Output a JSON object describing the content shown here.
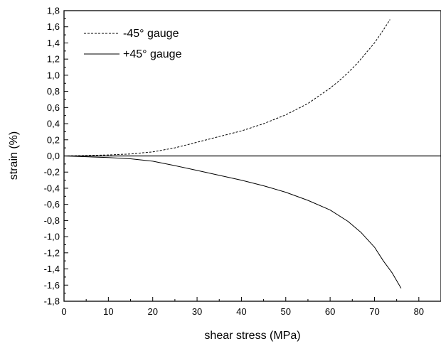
{
  "chart_data": {
    "type": "line",
    "title": "",
    "xlabel": "shear stress (MPa)",
    "ylabel": "strain (%)",
    "xlim": [
      0,
      85
    ],
    "ylim": [
      -1.8,
      1.8
    ],
    "x_ticks": [
      0,
      10,
      20,
      30,
      40,
      50,
      60,
      70,
      80
    ],
    "y_ticks": [
      -1.8,
      -1.6,
      -1.4,
      -1.2,
      -1.0,
      -0.8,
      -0.6,
      -0.4,
      -0.2,
      0.0,
      0.2,
      0.4,
      0.6,
      0.8,
      1.0,
      1.2,
      1.4,
      1.6,
      1.8
    ],
    "x_tick_labels": [
      "0",
      "10",
      "20",
      "30",
      "40",
      "50",
      "60",
      "70",
      "80"
    ],
    "y_tick_labels": [
      "-1,8",
      "-1,6",
      "-1,4",
      "-1,2",
      "-1,0",
      "-0,8",
      "-0,6",
      "-0,4",
      "-0,2",
      "0,0",
      "0,2",
      "0,4",
      "0,6",
      "0,8",
      "1,0",
      "1,2",
      "1,4",
      "1,6",
      "1,8"
    ],
    "grid": false,
    "legend_position": "top-left",
    "reference_line": {
      "y": 0
    },
    "series": [
      {
        "name": "-45° gauge",
        "style": "dashed",
        "color": "#000000",
        "points": [
          [
            0,
            0.0
          ],
          [
            5,
            0.005
          ],
          [
            10,
            0.012
          ],
          [
            15,
            0.025
          ],
          [
            20,
            0.05
          ],
          [
            25,
            0.1
          ],
          [
            30,
            0.17
          ],
          [
            35,
            0.24
          ],
          [
            40,
            0.31
          ],
          [
            45,
            0.4
          ],
          [
            50,
            0.51
          ],
          [
            55,
            0.65
          ],
          [
            60,
            0.84
          ],
          [
            62,
            0.93
          ],
          [
            64,
            1.03
          ],
          [
            66,
            1.14
          ],
          [
            68,
            1.27
          ],
          [
            70,
            1.4
          ],
          [
            72,
            1.56
          ],
          [
            73.5,
            1.69
          ]
        ]
      },
      {
        "name": "+45° gauge",
        "style": "solid",
        "color": "#000000",
        "points": [
          [
            0,
            0.0
          ],
          [
            5,
            -0.01
          ],
          [
            10,
            -0.02
          ],
          [
            15,
            -0.035
          ],
          [
            20,
            -0.065
          ],
          [
            25,
            -0.12
          ],
          [
            30,
            -0.18
          ],
          [
            35,
            -0.24
          ],
          [
            40,
            -0.3
          ],
          [
            45,
            -0.37
          ],
          [
            50,
            -0.45
          ],
          [
            55,
            -0.55
          ],
          [
            60,
            -0.67
          ],
          [
            64,
            -0.81
          ],
          [
            67,
            -0.95
          ],
          [
            70,
            -1.13
          ],
          [
            72,
            -1.3
          ],
          [
            74,
            -1.45
          ],
          [
            76,
            -1.64
          ]
        ]
      }
    ]
  }
}
